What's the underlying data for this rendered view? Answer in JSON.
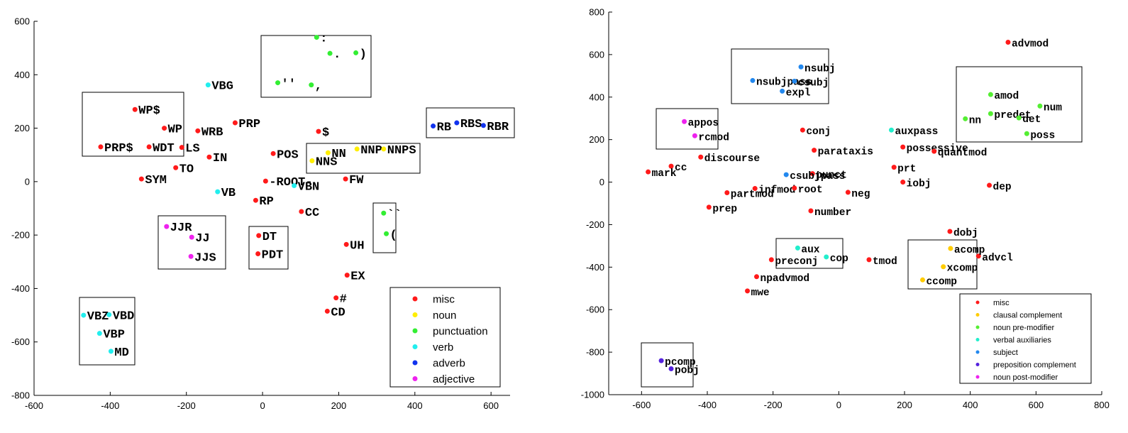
{
  "colors": {
    "misc": "#ff1a1a",
    "noun": "#ffee00",
    "punctuation": "#33ee33",
    "verb": "#22eeee",
    "adverb": "#1133ee",
    "adjective": "#ee22ee",
    "clausal complement": "#ffcc00",
    "noun pre-modifier": "#55ee33",
    "verbal auxiliaries": "#22eecc",
    "subject": "#2288ee",
    "preposition complement": "#5522dd",
    "noun post-modifier": "#ee22ee"
  },
  "chart_data": [
    {
      "type": "scatter",
      "xlim": [
        -600,
        650
      ],
      "ylim": [
        -800,
        600
      ],
      "xticks": [
        -600,
        -400,
        -200,
        0,
        200,
        400,
        600
      ],
      "yticks": [
        -800,
        -600,
        -400,
        -200,
        0,
        200,
        400,
        600
      ],
      "legend": [
        "misc",
        "noun",
        "punctuation",
        "verb",
        "adverb",
        "adjective"
      ],
      "legend_position": "bottom-right",
      "points": [
        {
          "label": "WP$",
          "x": -335,
          "y": 270,
          "cat": "misc"
        },
        {
          "label": "WP",
          "x": -258,
          "y": 200,
          "cat": "misc"
        },
        {
          "label": "WRB",
          "x": -170,
          "y": 190,
          "cat": "misc"
        },
        {
          "label": "PRP",
          "x": -72,
          "y": 220,
          "cat": "misc"
        },
        {
          "label": "PRP$",
          "x": -425,
          "y": 130,
          "cat": "misc"
        },
        {
          "label": "WDT",
          "x": -298,
          "y": 130,
          "cat": "misc"
        },
        {
          "label": "LS",
          "x": -212,
          "y": 128,
          "cat": "misc"
        },
        {
          "label": "IN",
          "x": -140,
          "y": 92,
          "cat": "misc"
        },
        {
          "label": "TO",
          "x": -228,
          "y": 52,
          "cat": "misc"
        },
        {
          "label": "SYM",
          "x": -318,
          "y": 10,
          "cat": "misc"
        },
        {
          "label": "$",
          "x": 147,
          "y": 188,
          "cat": "misc"
        },
        {
          "label": "POS",
          "x": 28,
          "y": 105,
          "cat": "misc"
        },
        {
          "label": "-ROOT-",
          "x": 8,
          "y": 2,
          "cat": "misc"
        },
        {
          "label": "FW",
          "x": 218,
          "y": 10,
          "cat": "misc"
        },
        {
          "label": "RP",
          "x": -18,
          "y": -70,
          "cat": "misc"
        },
        {
          "label": "CC",
          "x": 102,
          "y": -112,
          "cat": "misc"
        },
        {
          "label": "DT",
          "x": -10,
          "y": -202,
          "cat": "misc"
        },
        {
          "label": "PDT",
          "x": -12,
          "y": -270,
          "cat": "misc"
        },
        {
          "label": "UH",
          "x": 220,
          "y": -235,
          "cat": "misc"
        },
        {
          "label": "EX",
          "x": 222,
          "y": -350,
          "cat": "misc"
        },
        {
          "label": "#",
          "x": 193,
          "y": -435,
          "cat": "misc"
        },
        {
          "label": "CD",
          "x": 170,
          "y": -485,
          "cat": "misc"
        },
        {
          "label": "NN",
          "x": 172,
          "y": 108,
          "cat": "noun"
        },
        {
          "label": "NNS",
          "x": 130,
          "y": 78,
          "cat": "noun"
        },
        {
          "label": "NNP",
          "x": 248,
          "y": 122,
          "cat": "noun"
        },
        {
          "label": "NNPS",
          "x": 318,
          "y": 122,
          "cat": "noun"
        },
        {
          "label": ":",
          "x": 142,
          "y": 540,
          "cat": "punctuation"
        },
        {
          "label": ".",
          "x": 177,
          "y": 480,
          "cat": "punctuation"
        },
        {
          "label": ")",
          "x": 245,
          "y": 482,
          "cat": "punctuation"
        },
        {
          "label": "''",
          "x": 40,
          "y": 370,
          "cat": "punctuation"
        },
        {
          "label": ",",
          "x": 128,
          "y": 362,
          "cat": "punctuation"
        },
        {
          "label": "``",
          "x": 318,
          "y": -118,
          "cat": "punctuation"
        },
        {
          "label": "(",
          "x": 325,
          "y": -195,
          "cat": "punctuation"
        },
        {
          "label": "VBG",
          "x": -143,
          "y": 362,
          "cat": "verb"
        },
        {
          "label": "VB",
          "x": -118,
          "y": -38,
          "cat": "verb"
        },
        {
          "label": "VBN",
          "x": 83,
          "y": -15,
          "cat": "verb"
        },
        {
          "label": "VBZ",
          "x": -470,
          "y": -500,
          "cat": "verb"
        },
        {
          "label": "VBD",
          "x": -403,
          "y": -498,
          "cat": "verb"
        },
        {
          "label": "VBP",
          "x": -428,
          "y": -568,
          "cat": "verb"
        },
        {
          "label": "MD",
          "x": -398,
          "y": -635,
          "cat": "verb"
        },
        {
          "label": "RB",
          "x": 448,
          "y": 208,
          "cat": "adverb"
        },
        {
          "label": "RBS",
          "x": 510,
          "y": 220,
          "cat": "adverb"
        },
        {
          "label": "RBR",
          "x": 580,
          "y": 210,
          "cat": "adverb"
        },
        {
          "label": "JJR",
          "x": -252,
          "y": -168,
          "cat": "adjective"
        },
        {
          "label": "JJ",
          "x": -186,
          "y": -208,
          "cat": "adjective"
        },
        {
          "label": "JJS",
          "x": -188,
          "y": -280,
          "cat": "adjective"
        }
      ]
    },
    {
      "type": "scatter",
      "xlim": [
        -700,
        800
      ],
      "ylim": [
        -1000,
        800
      ],
      "xticks": [
        -600,
        -400,
        -200,
        0,
        200,
        400,
        600,
        800
      ],
      "yticks": [
        -1000,
        -800,
        -600,
        -400,
        -200,
        0,
        200,
        400,
        600,
        800
      ],
      "legend": [
        "misc",
        "clausal complement",
        "noun pre-modifier",
        "verbal auxiliaries",
        "subject",
        "preposition complement",
        "noun post-modifier"
      ],
      "legend_position": "bottom-right",
      "points": [
        {
          "label": "advmod",
          "x": 515,
          "y": 658,
          "cat": "misc"
        },
        {
          "label": "conj",
          "x": -110,
          "y": 245,
          "cat": "misc"
        },
        {
          "label": "parataxis",
          "x": -75,
          "y": 150,
          "cat": "misc"
        },
        {
          "label": "possessive",
          "x": 195,
          "y": 165,
          "cat": "misc"
        },
        {
          "label": "quantmod",
          "x": 290,
          "y": 145,
          "cat": "misc"
        },
        {
          "label": "discourse",
          "x": -420,
          "y": 118,
          "cat": "misc"
        },
        {
          "label": "cc",
          "x": -510,
          "y": 75,
          "cat": "misc"
        },
        {
          "label": "mark",
          "x": -580,
          "y": 48,
          "cat": "misc"
        },
        {
          "label": "punct",
          "x": -80,
          "y": 40,
          "cat": "misc"
        },
        {
          "label": "prt",
          "x": 168,
          "y": 70,
          "cat": "misc"
        },
        {
          "label": "iobj",
          "x": 195,
          "y": 0,
          "cat": "misc"
        },
        {
          "label": "dep",
          "x": 458,
          "y": -15,
          "cat": "misc"
        },
        {
          "label": "infmod",
          "x": -255,
          "y": -30,
          "cat": "misc"
        },
        {
          "label": "root",
          "x": -135,
          "y": -28,
          "cat": "misc"
        },
        {
          "label": "neg",
          "x": 28,
          "y": -48,
          "cat": "misc"
        },
        {
          "label": "partmod",
          "x": -340,
          "y": -50,
          "cat": "misc"
        },
        {
          "label": "prep",
          "x": -395,
          "y": -118,
          "cat": "misc"
        },
        {
          "label": "number",
          "x": -85,
          "y": -135,
          "cat": "misc"
        },
        {
          "label": "dobj",
          "x": 338,
          "y": -232,
          "cat": "misc"
        },
        {
          "label": "advcl",
          "x": 425,
          "y": -348,
          "cat": "misc"
        },
        {
          "label": "tmod",
          "x": 92,
          "y": -365,
          "cat": "misc"
        },
        {
          "label": "preconj",
          "x": -205,
          "y": -365,
          "cat": "misc"
        },
        {
          "label": "npadvmod",
          "x": -250,
          "y": -445,
          "cat": "misc"
        },
        {
          "label": "mwe",
          "x": -278,
          "y": -512,
          "cat": "misc"
        },
        {
          "label": "acomp",
          "x": 340,
          "y": -312,
          "cat": "clausal complement"
        },
        {
          "label": "xcomp",
          "x": 318,
          "y": -398,
          "cat": "clausal complement"
        },
        {
          "label": "ccomp",
          "x": 255,
          "y": -460,
          "cat": "clausal complement"
        },
        {
          "label": "amod",
          "x": 462,
          "y": 412,
          "cat": "noun pre-modifier"
        },
        {
          "label": "num",
          "x": 612,
          "y": 358,
          "cat": "noun pre-modifier"
        },
        {
          "label": "predet",
          "x": 462,
          "y": 322,
          "cat": "noun pre-modifier"
        },
        {
          "label": "det",
          "x": 548,
          "y": 302,
          "cat": "noun pre-modifier"
        },
        {
          "label": "nn",
          "x": 385,
          "y": 298,
          "cat": "noun pre-modifier"
        },
        {
          "label": "poss",
          "x": 572,
          "y": 228,
          "cat": "noun pre-modifier"
        },
        {
          "label": "auxpass",
          "x": 160,
          "y": 245,
          "cat": "verbal auxiliaries"
        },
        {
          "label": "aux",
          "x": -125,
          "y": -310,
          "cat": "verbal auxiliaries"
        },
        {
          "label": "cop",
          "x": -38,
          "y": -352,
          "cat": "verbal auxiliaries"
        },
        {
          "label": "nsubj",
          "x": -115,
          "y": 542,
          "cat": "subject"
        },
        {
          "label": "nsubjpass",
          "x": -262,
          "y": 478,
          "cat": "subject"
        },
        {
          "label": "csubj",
          "x": -135,
          "y": 475,
          "cat": "subject"
        },
        {
          "label": "expl",
          "x": -172,
          "y": 428,
          "cat": "subject"
        },
        {
          "label": "csubjpass",
          "x": -160,
          "y": 35,
          "cat": "subject"
        },
        {
          "label": "pcomp",
          "x": -540,
          "y": -840,
          "cat": "preposition complement"
        },
        {
          "label": "pobj",
          "x": -510,
          "y": -878,
          "cat": "preposition complement"
        },
        {
          "label": "appos",
          "x": -470,
          "y": 285,
          "cat": "noun post-modifier"
        },
        {
          "label": "rcmod",
          "x": -438,
          "y": 218,
          "cat": "noun post-modifier"
        }
      ]
    }
  ]
}
